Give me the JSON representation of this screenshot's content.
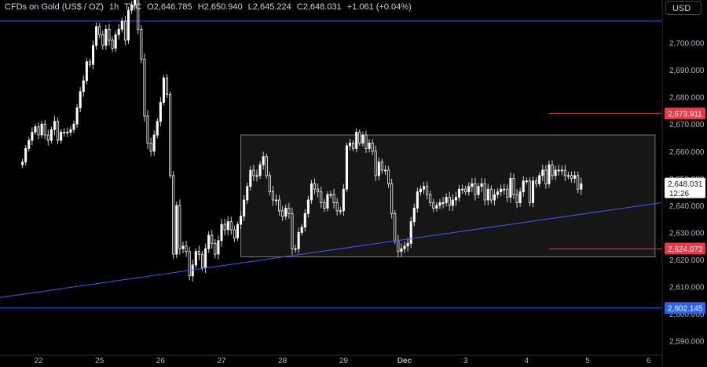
{
  "header": {
    "symbol": "CFDs on Gold (US$ / OZ)",
    "interval": "1h",
    "source": "TVC",
    "open": "O2,646.785",
    "high": "H2,650.940",
    "low": "L2,645.224",
    "close": "C2,648.031",
    "change": "+1.061 (+0.04%)"
  },
  "currency_button": "USD",
  "colors": {
    "background": "#000000",
    "candle_up": "#ffffff",
    "candle_down": "#ffffff",
    "trendline": "#3d5afe",
    "resistance_line": "#f23645",
    "support_marker": "#f23645",
    "horizontal_line": "#2962ff",
    "range_box": "#787b86",
    "axis_text": "#b2b5be"
  },
  "chart_data": {
    "type": "candlestick",
    "title": "CFDs on Gold (US$ / OZ)",
    "ylim": [
      2585,
      2710
    ],
    "y_ticks": [
      "2,590.000",
      "2,600.000",
      "2,610.000",
      "2,620.000",
      "2,630.000",
      "2,640.000",
      "2,650.000",
      "2,660.000",
      "2,670.000",
      "2,680.000",
      "2,690.000",
      "2,700.000"
    ],
    "y_tick_values": [
      2590,
      2600,
      2610,
      2620,
      2630,
      2640,
      2650,
      2660,
      2670,
      2680,
      2690,
      2700
    ],
    "x_ticks": [
      "22",
      "25",
      "26",
      "27",
      "28",
      "29",
      "Dec",
      "3",
      "4",
      "5",
      "6"
    ],
    "x_tick_values": [
      5,
      24,
      43,
      62,
      81,
      100,
      119,
      138,
      157,
      176,
      195
    ],
    "xlim": [
      -7,
      199
    ],
    "candle_closes": [
      2656,
      2661,
      2664,
      2667,
      2669,
      2666,
      2670,
      2666,
      2664,
      2668,
      2671,
      2664,
      2667,
      2667,
      2667,
      2668,
      2670,
      2676,
      2682,
      2686,
      2693,
      2692,
      2699,
      2706,
      2703,
      2699,
      2705,
      2701,
      2698,
      2703,
      2705,
      2708,
      2701,
      2712,
      2714,
      2718,
      2705,
      2694,
      2673,
      2663,
      2660,
      2666,
      2671,
      2678,
      2687,
      2681,
      2651,
      2622,
      2640,
      2624,
      2625,
      2623,
      2614,
      2618,
      2623,
      2622,
      2617,
      2624,
      2629,
      2626,
      2622,
      2627,
      2633,
      2631,
      2634,
      2631,
      2628,
      2633,
      2636,
      2642,
      2647,
      2653,
      2651,
      2651,
      2655,
      2658,
      2651,
      2645,
      2642,
      2642,
      2638,
      2636,
      2639,
      2637,
      2624,
      2624,
      2630,
      2632,
      2637,
      2642,
      2648,
      2646,
      2645,
      2641,
      2639,
      2644,
      2644,
      2641,
      2638,
      2638,
      2646,
      2662,
      2663,
      2661,
      2667,
      2663,
      2666,
      2661,
      2663,
      2660,
      2651,
      2656,
      2653,
      2653,
      2648,
      2637,
      2627,
      2623,
      2624,
      2625,
      2626,
      2634,
      2639,
      2645,
      2646,
      2647,
      2644,
      2641,
      2639,
      2640,
      2641,
      2641,
      2643,
      2640,
      2642,
      2643,
      2646,
      2646,
      2645,
      2647,
      2648,
      2644,
      2647,
      2648,
      2642,
      2646,
      2642,
      2644,
      2645,
      2646,
      2646,
      2643,
      2650,
      2644,
      2641,
      2645,
      2649,
      2649,
      2641,
      2649,
      2648,
      2651,
      2653,
      2648,
      2655,
      2651,
      2653,
      2653,
      2653,
      2651,
      2651,
      2650,
      2651,
      2646,
      2648
    ],
    "candle_ranges": [
      2.6,
      2.8,
      2.6,
      4.0,
      2.3,
      3.6,
      2.6,
      3.6,
      4.2,
      2.5,
      4.7,
      3.2,
      2.5,
      3.3,
      4.0,
      3.1,
      2.9,
      3.1,
      3.6,
      4.3,
      2.9,
      2.6,
      4.2,
      3.4,
      3.0,
      3.5,
      3.5,
      4.4,
      3.1,
      3.0,
      4.2,
      2.8,
      4.4,
      3.0,
      3.1,
      4.6,
      4.0,
      3.4,
      4.6,
      4.8,
      4.3,
      3.8,
      2.8,
      4.2,
      2.5,
      3.1,
      2.3,
      3.7,
      3.3,
      4.9,
      3.8,
      4.4,
      3.7,
      4.6,
      2.7,
      4.9,
      2.7,
      4.2,
      3.2,
      4.4,
      3.5,
      4.2,
      4.8,
      4.6,
      4.6,
      4.1,
      3.4,
      2.4,
      4.4,
      3.9,
      3.1,
      3.4,
      4.4,
      4.9,
      2.8,
      4.0,
      2.4,
      2.9,
      4.8,
      4.6,
      4.0,
      3.9,
      2.9,
      4.3,
      4.9,
      3.4,
      3.9,
      2.6,
      3.6,
      3.3,
      3.1,
      4.3,
      4.6,
      4.4,
      3.1,
      2.6,
      3.2,
      4.7,
      3.8,
      3.1,
      4.2,
      2.6,
      3.6,
      2.3,
      3.3,
      2.3,
      2.9,
      3.6,
      3.1,
      3.1,
      4.5,
      3.8,
      2.7,
      4.0,
      3.4,
      4.1,
      2.8,
      4.8,
      4.4,
      3.6,
      4.5,
      3.8,
      3.6,
      3.5,
      3.0,
      3.9,
      4.0,
      3.0,
      3.3,
      2.8,
      3.1,
      4.7,
      3.1,
      4.5,
      4.6,
      4.8,
      3.4,
      3.8,
      2.8,
      3.3,
      4.6,
      4.9,
      3.0,
      4.7,
      4.5,
      4.3,
      3.1,
      4.4,
      3.1,
      3.6,
      4.5,
      4.1,
      4.8,
      3.7,
      4.4,
      3.4,
      4.0,
      2.9,
      2.8,
      3.6,
      3.2,
      2.6,
      4.5,
      4.1,
      3.3,
      3.6,
      3.6,
      4.4,
      4.1,
      4.5,
      3.2,
      3.5,
      3.8,
      3.4,
      4.9,
      3.5,
      3.1,
      2.3,
      2.4
    ],
    "range_box": {
      "x0": 68,
      "x1": 197,
      "y_top": 2666,
      "y_bottom": 2621
    },
    "trendline": {
      "x0": -7,
      "y0": 2606,
      "x1": 199,
      "y1": 2641
    },
    "resistance_line": {
      "x0": 164,
      "x1": 199,
      "y": 2674
    },
    "support_line": {
      "x0": 164,
      "x1": 199,
      "y": 2624
    },
    "horizontal_line": {
      "y": 2602.145
    },
    "top_line": {
      "y": 2708
    },
    "price_labels": [
      {
        "text": "2,673.911",
        "value": 2673.911,
        "color": "#f23645"
      },
      {
        "text": "2,648.031",
        "sub": "12:26",
        "value": 2648.031,
        "color": "#ffffff"
      },
      {
        "text": "2,624.073",
        "value": 2624.073,
        "color": "#f23645"
      },
      {
        "text": "2,602.145",
        "value": 2602.145,
        "color": "#2962ff"
      }
    ]
  }
}
